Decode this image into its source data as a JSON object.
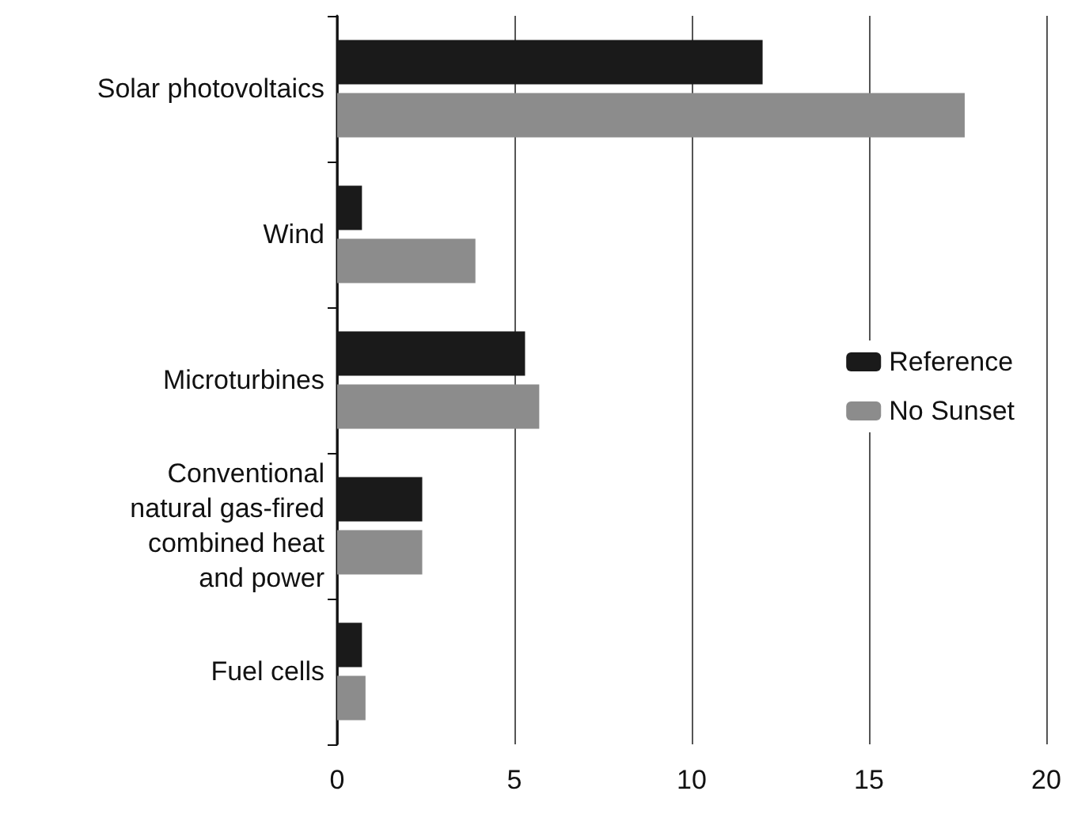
{
  "chart_data": {
    "type": "bar",
    "orientation": "horizontal",
    "categories": [
      "Solar photovoltaics",
      "Wind",
      "Microturbines",
      "Conventional\nnatural gas-fired\ncombined heat\nand power",
      "Fuel cells"
    ],
    "series": [
      {
        "name": "Reference",
        "color": "#1a1a1a",
        "values": [
          12.0,
          0.7,
          5.3,
          2.4,
          0.7
        ]
      },
      {
        "name": "No Sunset",
        "color": "#8c8c8c",
        "values": [
          17.7,
          3.9,
          5.7,
          2.4,
          0.8
        ]
      }
    ],
    "xlim": [
      0,
      20
    ],
    "xticks": [
      0,
      5,
      10,
      15,
      20
    ],
    "grid": "x",
    "legend": "right"
  }
}
